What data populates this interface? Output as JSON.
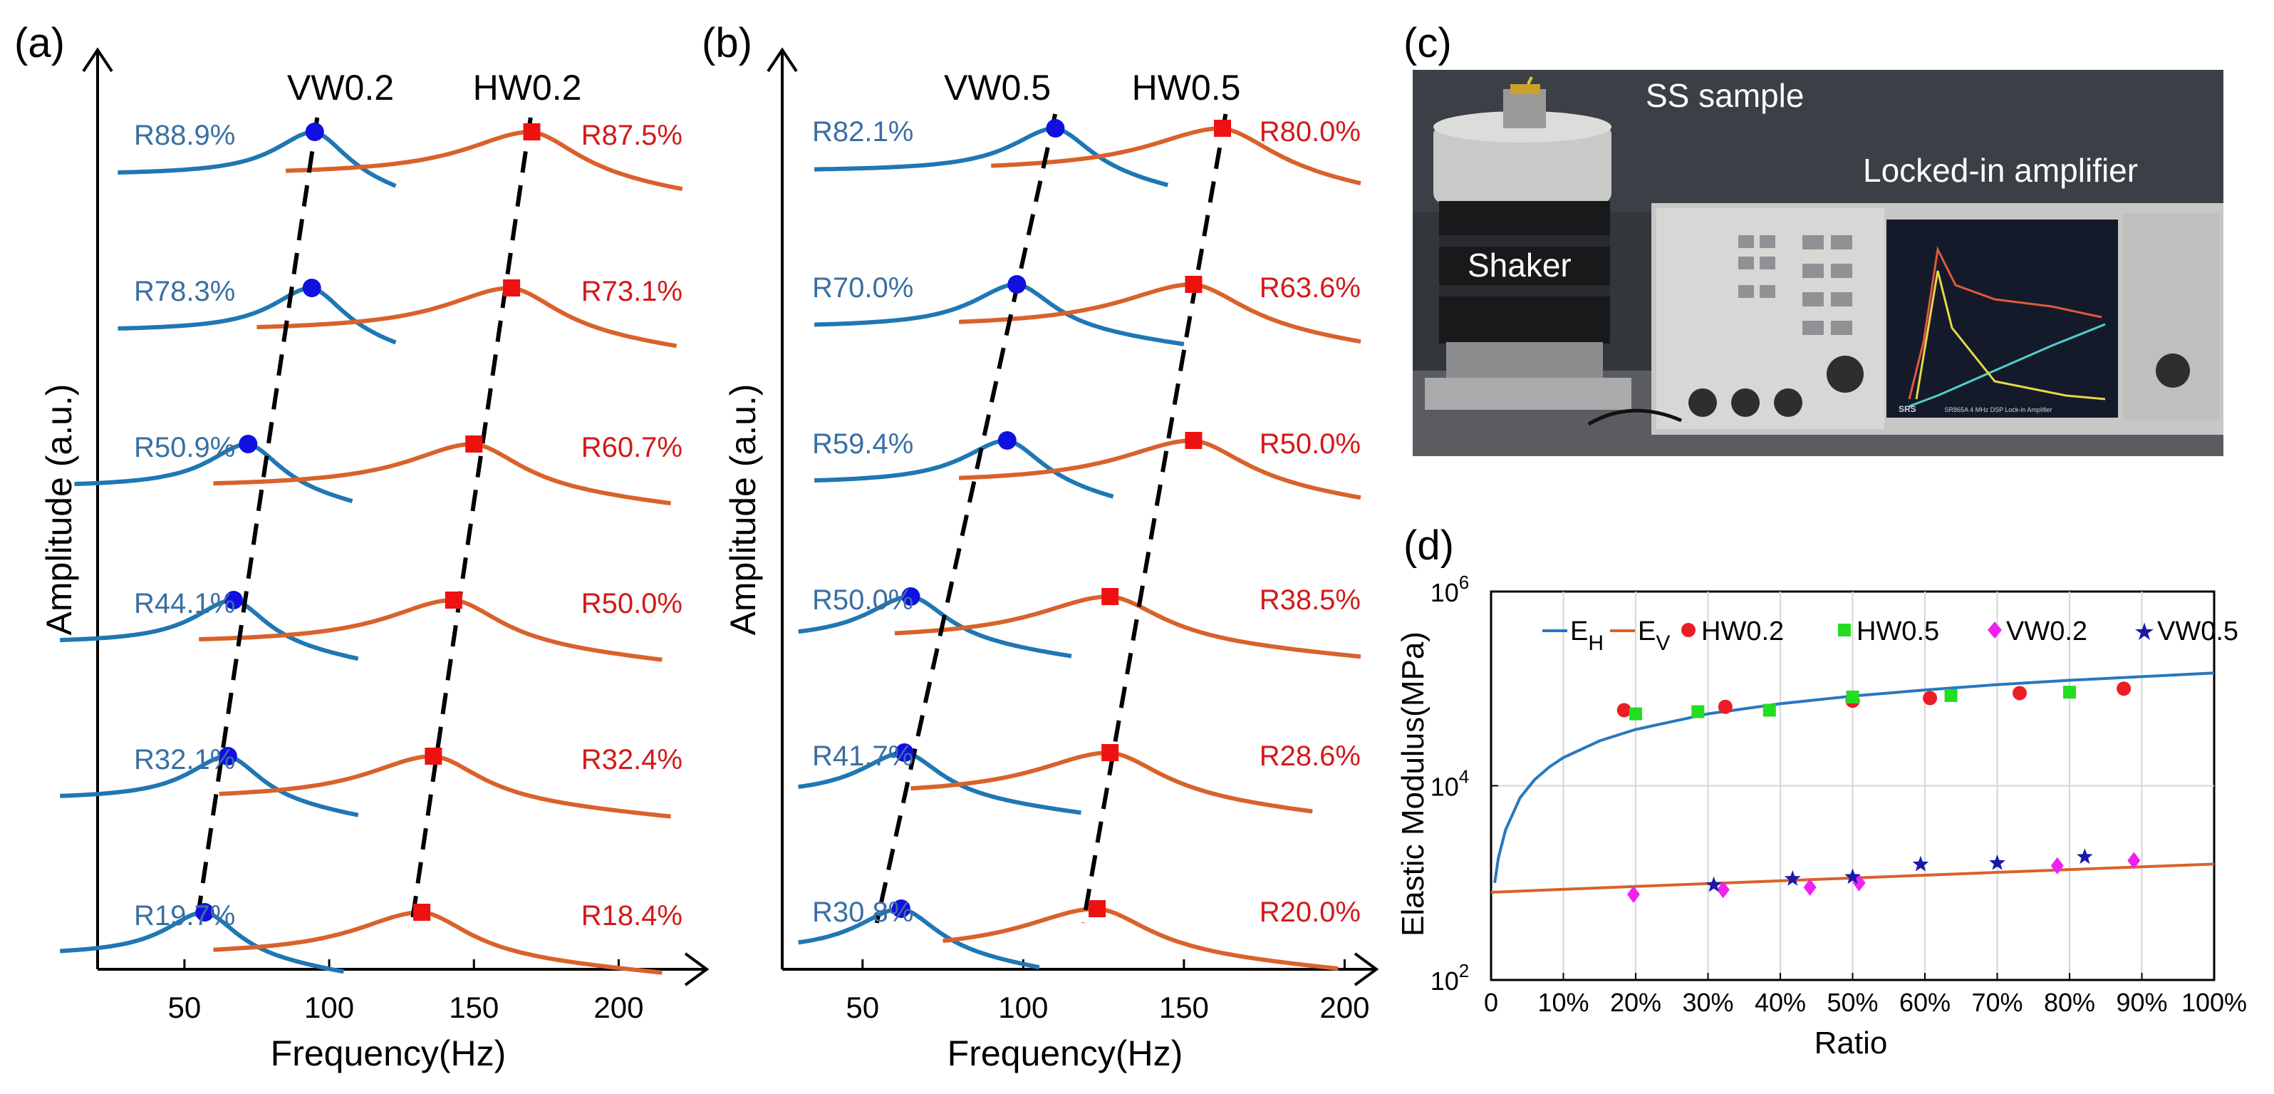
{
  "colors": {
    "vw": "#1f77b4",
    "hw": "#d9622b",
    "vw_label": "#3a6fa3",
    "hw_label": "#d11a1a",
    "marker_vw": "#1010e0",
    "marker_hw": "#ee1111",
    "eh_line": "#2878bd",
    "ev_line": "#d9622b",
    "hw02": "#ee1c25",
    "hw05": "#22dd22",
    "vw02": "#ee22ee",
    "vw05": "#1a1aa8",
    "photo_bg": "#34383e",
    "screen": "#151a2a"
  },
  "chart_data": [
    {
      "panel": "(a)",
      "type": "line",
      "title_left": "VW0.2",
      "title_right": "HW0.2",
      "xlabel": "Frequency(Hz)",
      "ylabel": "Amplitude (a.u.)",
      "xticks": [
        50,
        100,
        150,
        200
      ],
      "xlim": [
        20,
        225
      ],
      "rows": [
        {
          "vw_label": "R88.9%",
          "vw_peak": 95,
          "vw_x": [
            27,
            123
          ],
          "hw_label": "R87.5%",
          "hw_peak": 170,
          "hw_x": [
            85,
            222
          ]
        },
        {
          "vw_label": "R78.3%",
          "vw_peak": 94,
          "vw_x": [
            27,
            123
          ],
          "hw_label": "R73.1%",
          "hw_peak": 163,
          "hw_x": [
            75,
            220
          ]
        },
        {
          "vw_label": "R50.9%",
          "vw_peak": 72,
          "vw_x": [
            12,
            108
          ],
          "hw_label": "R60.7%",
          "hw_peak": 150,
          "hw_x": [
            60,
            218
          ]
        },
        {
          "vw_label": "R44.1%",
          "vw_peak": 67,
          "vw_x": [
            7,
            110
          ],
          "hw_label": "R50.0%",
          "hw_peak": 143,
          "hw_x": [
            55,
            215
          ]
        },
        {
          "vw_label": "R32.1%",
          "vw_peak": 65,
          "vw_x": [
            7,
            110
          ],
          "hw_label": "R32.4%",
          "hw_peak": 136,
          "hw_x": [
            62,
            218
          ]
        },
        {
          "vw_label": "R19.7%",
          "vw_peak": 57,
          "vw_x": [
            7,
            105
          ],
          "hw_label": "R18.4%",
          "hw_peak": 132,
          "hw_x": [
            60,
            215
          ]
        }
      ]
    },
    {
      "panel": "(b)",
      "type": "line",
      "title_left": "VW0.5",
      "title_right": "HW0.5",
      "xlabel": "Frequency(Hz)",
      "ylabel": "Amplitude (a.u.)",
      "xticks": [
        50,
        100,
        150,
        200
      ],
      "xlim": [
        25,
        205
      ],
      "rows": [
        {
          "vw_label": "R82.1%",
          "vw_peak": 110,
          "vw_x": [
            35,
            145
          ],
          "hw_label": "R80.0%",
          "hw_peak": 162,
          "hw_x": [
            90,
            205
          ]
        },
        {
          "vw_label": "R70.0%",
          "vw_peak": 98,
          "vw_x": [
            35,
            150
          ],
          "hw_label": "R63.6%",
          "hw_peak": 153,
          "hw_x": [
            80,
            205
          ]
        },
        {
          "vw_label": "R59.4%",
          "vw_peak": 95,
          "vw_x": [
            35,
            128
          ],
          "hw_label": "R50.0%",
          "hw_peak": 153,
          "hw_x": [
            80,
            205
          ]
        },
        {
          "vw_label": "R50.0%",
          "vw_peak": 65,
          "vw_x": [
            30,
            115
          ],
          "hw_label": "R38.5%",
          "hw_peak": 127,
          "hw_x": [
            60,
            205
          ]
        },
        {
          "vw_label": "R41.7%",
          "vw_peak": 63,
          "vw_x": [
            30,
            118
          ],
          "hw_label": "R28.6%",
          "hw_peak": 127,
          "hw_x": [
            65,
            190
          ]
        },
        {
          "vw_label": "R30.8%",
          "vw_peak": 62,
          "vw_x": [
            30,
            105
          ],
          "hw_label": "R20.0%",
          "hw_peak": 123,
          "hw_x": [
            75,
            198
          ]
        }
      ]
    },
    {
      "panel": "(d)",
      "type": "scatter",
      "ylabel": "Elastic Modulus(MPa)",
      "xlabel": "Ratio",
      "yscale": "log",
      "ylim": [
        100,
        1000000
      ],
      "yticks": [
        {
          "base": "10",
          "exp": "2"
        },
        {
          "base": "10",
          "exp": "4"
        },
        {
          "base": "10",
          "exp": "6"
        }
      ],
      "xlim": [
        0,
        1
      ],
      "xticklabels": [
        "0",
        "10%",
        "20%",
        "30%",
        "40%",
        "50%",
        "60%",
        "70%",
        "80%",
        "90%",
        "100%"
      ],
      "grid": true,
      "legend": [
        {
          "base": "E",
          "sub": "H"
        },
        {
          "base": "E",
          "sub": "V"
        },
        {
          "label": "HW0.2"
        },
        {
          "label": "HW0.5"
        },
        {
          "label": "VW0.2"
        },
        {
          "label": "VW0.5"
        }
      ],
      "EH_curve": {
        "x": [
          0.005,
          0.01,
          0.02,
          0.04,
          0.06,
          0.08,
          0.1,
          0.15,
          0.2,
          0.3,
          0.4,
          0.5,
          0.6,
          0.7,
          0.8,
          0.9,
          1.0
        ],
        "y": [
          1000,
          1800,
          3500,
          7500,
          11500,
          15500,
          19500,
          29000,
          38000,
          55000,
          70000,
          84000,
          97000,
          110000,
          122000,
          133000,
          145000
        ]
      },
      "EV_curve": {
        "x": [
          0,
          0.2,
          0.4,
          0.6,
          0.8,
          1.0
        ],
        "y": [
          800,
          920,
          1050,
          1200,
          1370,
          1560
        ]
      },
      "series": [
        {
          "name": "HW0.2",
          "marker": "circle",
          "x": [
            0.184,
            0.324,
            0.5,
            0.607,
            0.731,
            0.875
          ],
          "y": [
            60000,
            65000,
            75000,
            80000,
            90000,
            100000
          ]
        },
        {
          "name": "HW0.5",
          "marker": "square",
          "x": [
            0.2,
            0.286,
            0.385,
            0.5,
            0.636,
            0.8
          ],
          "y": [
            55000,
            58000,
            60000,
            82000,
            85000,
            92000
          ]
        },
        {
          "name": "VW0.2",
          "marker": "diamond",
          "x": [
            0.197,
            0.321,
            0.441,
            0.509,
            0.783,
            0.889
          ],
          "y": [
            760,
            850,
            900,
            1000,
            1500,
            1700
          ]
        },
        {
          "name": "VW0.5",
          "marker": "star",
          "x": [
            0.308,
            0.417,
            0.5,
            0.594,
            0.7,
            0.821
          ],
          "y": [
            950,
            1100,
            1150,
            1550,
            1600,
            1850
          ]
        }
      ]
    }
  ],
  "photo": {
    "label": "(c)",
    "sample_label": "SS sample",
    "amplifier_label": "Locked-in amplifier",
    "shaker_label": "Shaker",
    "device_text": "SR865A  4 MHz DSP Lock-in Amplifier",
    "brand": "SRS"
  }
}
